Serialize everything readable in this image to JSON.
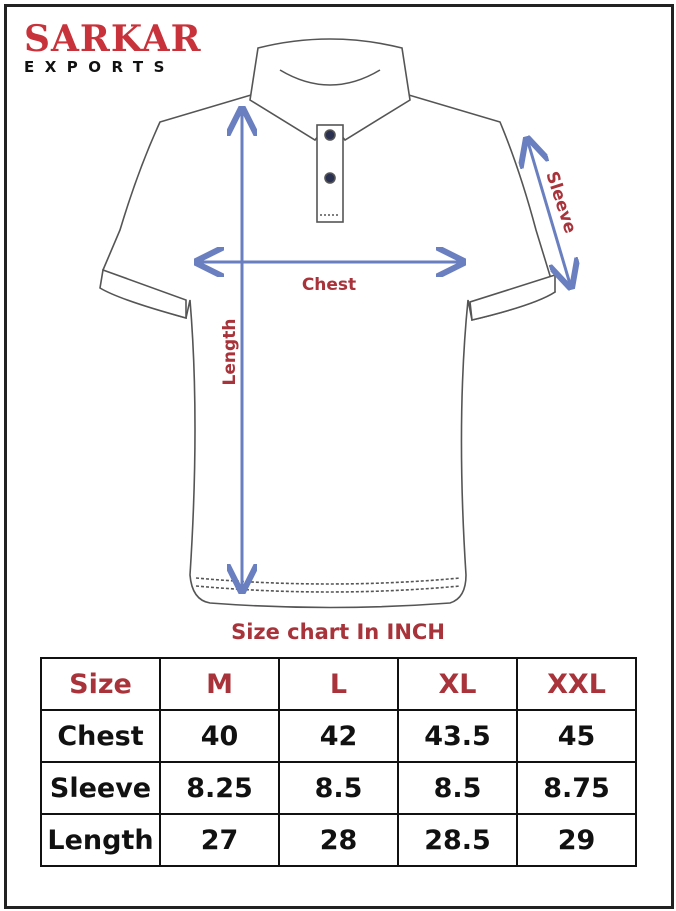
{
  "brand": {
    "name": "SARKAR",
    "subtitle": "EXPORTS"
  },
  "diagram": {
    "labels": {
      "chest": "Chest",
      "length": "Length",
      "sleeve": "Sleeve"
    },
    "colors": {
      "arrow": "#6a7fc0",
      "label": "#a8333a"
    }
  },
  "caption": "Size chart In INCH",
  "table": {
    "header": [
      "Size",
      "M",
      "L",
      "XL",
      "XXL"
    ],
    "rows": [
      [
        "Chest",
        "40",
        "42",
        "43.5",
        "45"
      ],
      [
        "Sleeve",
        "8.25",
        "8.5",
        "8.5",
        "8.75"
      ],
      [
        "Length",
        "27",
        "28",
        "28.5",
        "29"
      ]
    ]
  }
}
